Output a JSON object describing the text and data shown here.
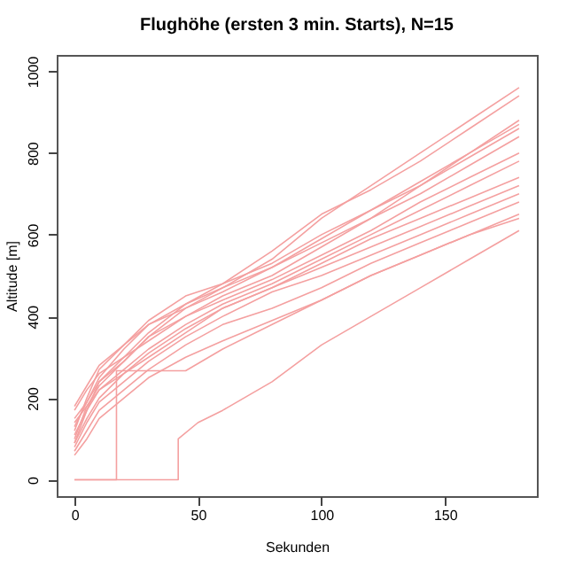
{
  "chart_data": {
    "type": "line",
    "title": "Flughöhe (ersten 3 min. Starts), N=15",
    "xlabel": "Sekunden",
    "ylabel": "Altitude [m]",
    "x": [
      0,
      5,
      10,
      20,
      30,
      45,
      60,
      80,
      100,
      120,
      140,
      160,
      180
    ],
    "series": [
      {
        "color": "#f4a0a0",
        "values": [
          100,
          180,
          230,
          290,
          350,
          420,
          470,
          540,
          640,
          720,
          800,
          880,
          960
        ]
      },
      {
        "color": "#f4a0a0",
        "values": [
          90,
          170,
          240,
          300,
          360,
          430,
          480,
          560,
          650,
          710,
          780,
          860,
          940
        ]
      },
      {
        "color": "#f4a0a0",
        "values": [
          120,
          200,
          270,
          330,
          390,
          450,
          480,
          530,
          600,
          660,
          730,
          800,
          880
        ]
      },
      {
        "color": "#f4a0a0",
        "values": [
          150,
          190,
          250,
          320,
          380,
          430,
          470,
          520,
          580,
          640,
          720,
          800,
          870
        ]
      },
      {
        "color": "#f4a0a0",
        "values": [
          180,
          230,
          280,
          330,
          380,
          420,
          460,
          520,
          590,
          660,
          720,
          790,
          860
        ]
      },
      {
        "color": "#f4a0a0",
        "values": [
          170,
          220,
          260,
          300,
          340,
          400,
          450,
          500,
          570,
          640,
          700,
          770,
          840
        ]
      },
      {
        "color": "#f4a0a0",
        "values": [
          130,
          190,
          240,
          290,
          350,
          400,
          440,
          490,
          550,
          610,
          680,
          740,
          800
        ]
      },
      {
        "color": "#f4a0a0",
        "values": [
          110,
          170,
          220,
          270,
          320,
          380,
          430,
          480,
          540,
          600,
          660,
          720,
          780
        ]
      },
      {
        "color": "#f4a0a0",
        "values": [
          140,
          180,
          220,
          260,
          300,
          360,
          420,
          470,
          530,
          590,
          640,
          690,
          740
        ]
      },
      {
        "color": "#f4a0a0",
        "values": [
          90,
          150,
          200,
          260,
          310,
          370,
          420,
          470,
          520,
          570,
          620,
          670,
          720
        ]
      },
      {
        "color": "#f4a0a0",
        "values": [
          80,
          140,
          190,
          240,
          290,
          350,
          400,
          460,
          500,
          550,
          600,
          650,
          700
        ]
      },
      {
        "color": "#f4a0a0",
        "values": [
          70,
          120,
          170,
          220,
          270,
          330,
          380,
          420,
          470,
          530,
          580,
          630,
          680
        ]
      },
      {
        "color": "#f4a0a0",
        "values": [
          60,
          100,
          150,
          200,
          250,
          300,
          340,
          390,
          440,
          500,
          550,
          600,
          650
        ]
      },
      {
        "color": "#f4a0a0",
        "x": [
          0,
          17,
          17,
          30,
          45,
          60,
          80,
          100,
          120,
          140,
          160,
          180
        ],
        "values": [
          0,
          0,
          267,
          267,
          267,
          320,
          380,
          440,
          500,
          550,
          600,
          640
        ]
      },
      {
        "color": "#f4a0a0",
        "x": [
          0,
          42,
          42,
          50,
          60,
          80,
          100,
          120,
          140,
          160,
          180
        ],
        "values": [
          0,
          0,
          100,
          140,
          170,
          240,
          330,
          400,
          470,
          540,
          610
        ]
      }
    ],
    "xlim": [
      -7.2,
      187.2
    ],
    "ylim": [
      -40,
      1040
    ],
    "xticks": [
      0,
      50,
      100,
      150
    ],
    "yticks": [
      0,
      200,
      400,
      600,
      800,
      1000
    ],
    "grid": false,
    "legend": false
  }
}
